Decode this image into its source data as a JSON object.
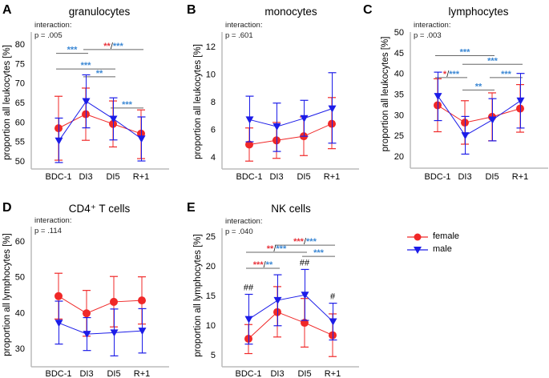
{
  "legend": {
    "position": "right",
    "items": [
      {
        "label": "female",
        "color": "#f02828",
        "marker": "circle"
      },
      {
        "label": "male",
        "color": "#1c1ce8",
        "marker": "triangle-down"
      }
    ]
  },
  "colors": {
    "female": "#f02828",
    "male": "#1c1ce8",
    "sig_female": "#e8343c",
    "sig_male": "#3c88d4",
    "bracket": "#666666"
  },
  "chart_data": [
    {
      "letter": "A",
      "type": "line",
      "title": "granulocytes",
      "interaction": [
        "interaction:",
        "p = .005"
      ],
      "ylabel": "proportion all leukocytes [%]",
      "xlabel": "",
      "categories": [
        "BDC-1",
        "DI3",
        "DI5",
        "R+1"
      ],
      "ylim": [
        50,
        80
      ],
      "yticks": [
        50,
        55,
        60,
        65,
        70,
        75,
        80
      ],
      "series": [
        {
          "name": "female",
          "values": [
            58.4,
            62.0,
            59.5,
            57.0
          ],
          "err_low": [
            50.2,
            55.3,
            53.6,
            50.6
          ],
          "err_high": [
            66.6,
            68.7,
            65.4,
            63.1
          ]
        },
        {
          "name": "male",
          "values": [
            55.2,
            65.3,
            60.8,
            55.7
          ],
          "err_low": [
            49.6,
            58.5,
            55.4,
            50.0
          ],
          "err_high": [
            61.0,
            72.1,
            66.2,
            61.3
          ]
        }
      ],
      "brackets": [
        {
          "from": "BDC-1",
          "to": "DI3",
          "female": "",
          "male": "***"
        },
        {
          "from": "DI3",
          "to": "R+1",
          "female": "**",
          "male": "***"
        },
        {
          "from": "BDC-1",
          "to": "DI5",
          "female": "",
          "male": "***"
        },
        {
          "from": "DI3",
          "to": "DI5",
          "female": "",
          "male": "**"
        },
        {
          "from": "DI5",
          "to": "R+1",
          "female": "",
          "male": "***"
        }
      ],
      "hashes": [
        "",
        "",
        "",
        ""
      ]
    },
    {
      "letter": "B",
      "type": "line",
      "title": "monocytes",
      "interaction": [
        "interaction:",
        "p = .601"
      ],
      "ylabel": "proportion all leukocytes [%]",
      "xlabel": "",
      "categories": [
        "BDC-1",
        "DI3",
        "DI5",
        "R+1"
      ],
      "ylim": [
        4,
        12
      ],
      "yticks": [
        4,
        6,
        8,
        10,
        12
      ],
      "series": [
        {
          "name": "female",
          "values": [
            4.9,
            5.2,
            5.5,
            6.4
          ],
          "err_low": [
            3.7,
            3.9,
            4.1,
            4.6
          ],
          "err_high": [
            6.1,
            6.5,
            6.9,
            8.3
          ]
        },
        {
          "name": "male",
          "values": [
            6.7,
            6.2,
            6.8,
            7.5
          ],
          "err_low": [
            5.1,
            4.4,
            5.5,
            5.0
          ],
          "err_high": [
            8.4,
            7.9,
            8.1,
            10.1
          ]
        }
      ],
      "brackets": [],
      "hashes": [
        "",
        "",
        "",
        ""
      ]
    },
    {
      "letter": "C",
      "type": "line",
      "title": "lymphocytes",
      "interaction": [
        "interaction:",
        "p = .003"
      ],
      "ylabel": "proportion all leukocytes [%]",
      "xlabel": "",
      "categories": [
        "BDC-1",
        "DI3",
        "DI5",
        "R+1"
      ],
      "ylim": [
        20,
        50
      ],
      "yticks": [
        20,
        25,
        30,
        35,
        40,
        45,
        50
      ],
      "series": [
        {
          "name": "female",
          "values": [
            32.3,
            28.1,
            29.5,
            31.5
          ],
          "err_low": [
            25.9,
            22.9,
            23.7,
            25.8
          ],
          "err_high": [
            38.7,
            33.4,
            35.3,
            37.3
          ]
        },
        {
          "name": "male",
          "values": [
            34.5,
            25.0,
            28.8,
            33.4
          ],
          "err_low": [
            28.6,
            20.5,
            23.7,
            26.8
          ],
          "err_high": [
            40.3,
            29.6,
            33.9,
            40.0
          ]
        }
      ],
      "brackets": [
        {
          "from": "BDC-1",
          "to": "DI5",
          "female": "",
          "male": "***"
        },
        {
          "from": "DI3",
          "to": "R+1",
          "female": "",
          "male": "***"
        },
        {
          "from": "BDC-1",
          "to": "DI3",
          "female": "*",
          "male": "***"
        },
        {
          "from": "DI5",
          "to": "R+1",
          "female": "",
          "male": "***"
        },
        {
          "from": "DI3",
          "to": "DI5",
          "female": "",
          "male": "**"
        }
      ],
      "hashes": [
        "",
        "",
        "",
        ""
      ]
    },
    {
      "letter": "D",
      "type": "line",
      "title": "CD4⁺ T cells",
      "interaction": [
        "interaction:",
        "p = .114"
      ],
      "ylabel": "proportion all lymphocytes [%]",
      "xlabel": "",
      "categories": [
        "BDC-1",
        "DI3",
        "DI5",
        "R+1"
      ],
      "ylim": [
        30,
        60
      ],
      "yticks": [
        30,
        40,
        50,
        60
      ],
      "series": [
        {
          "name": "female",
          "values": [
            44.6,
            39.8,
            43.0,
            43.4
          ],
          "err_low": [
            38.2,
            33.4,
            36.0,
            36.8
          ],
          "err_high": [
            51.0,
            46.2,
            50.1,
            50.0
          ]
        },
        {
          "name": "male",
          "values": [
            37.1,
            34.0,
            34.4,
            34.9
          ],
          "err_low": [
            31.2,
            29.4,
            27.9,
            28.7
          ],
          "err_high": [
            43.2,
            38.6,
            41.0,
            41.1
          ]
        }
      ],
      "brackets": [],
      "hashes": [
        "",
        "",
        "",
        ""
      ]
    },
    {
      "letter": "E",
      "type": "line",
      "title": "NK cells",
      "interaction": [
        "interaction:",
        "p = .040"
      ],
      "ylabel": "proportion all lymphocytes [%]",
      "xlabel": "",
      "categories": [
        "BDC-1",
        "DI3",
        "DI5",
        "R+1"
      ],
      "ylim": [
        5,
        25
      ],
      "yticks": [
        5,
        10,
        15,
        20,
        25
      ],
      "series": [
        {
          "name": "female",
          "values": [
            7.7,
            12.2,
            10.4,
            8.3
          ],
          "err_low": [
            5.2,
            8.0,
            6.3,
            4.7
          ],
          "err_high": [
            10.1,
            16.5,
            14.5,
            11.9
          ]
        },
        {
          "name": "male",
          "values": [
            11.0,
            14.2,
            15.1,
            10.6
          ],
          "err_low": [
            6.8,
            9.9,
            10.8,
            7.5
          ],
          "err_high": [
            15.2,
            18.5,
            19.4,
            13.7
          ]
        }
      ],
      "brackets": [
        {
          "from": "DI3",
          "to": "R+1",
          "female": "***",
          "male": "***"
        },
        {
          "from": "BDC-1",
          "to": "DI5",
          "female": "**",
          "male": "***"
        },
        {
          "from": "DI5",
          "to": "R+1",
          "female": "",
          "male": "***"
        },
        {
          "from": "BDC-1",
          "to": "DI3",
          "female": "***",
          "male": "**"
        }
      ],
      "hashes": [
        "##",
        "",
        "##",
        "#"
      ]
    }
  ]
}
